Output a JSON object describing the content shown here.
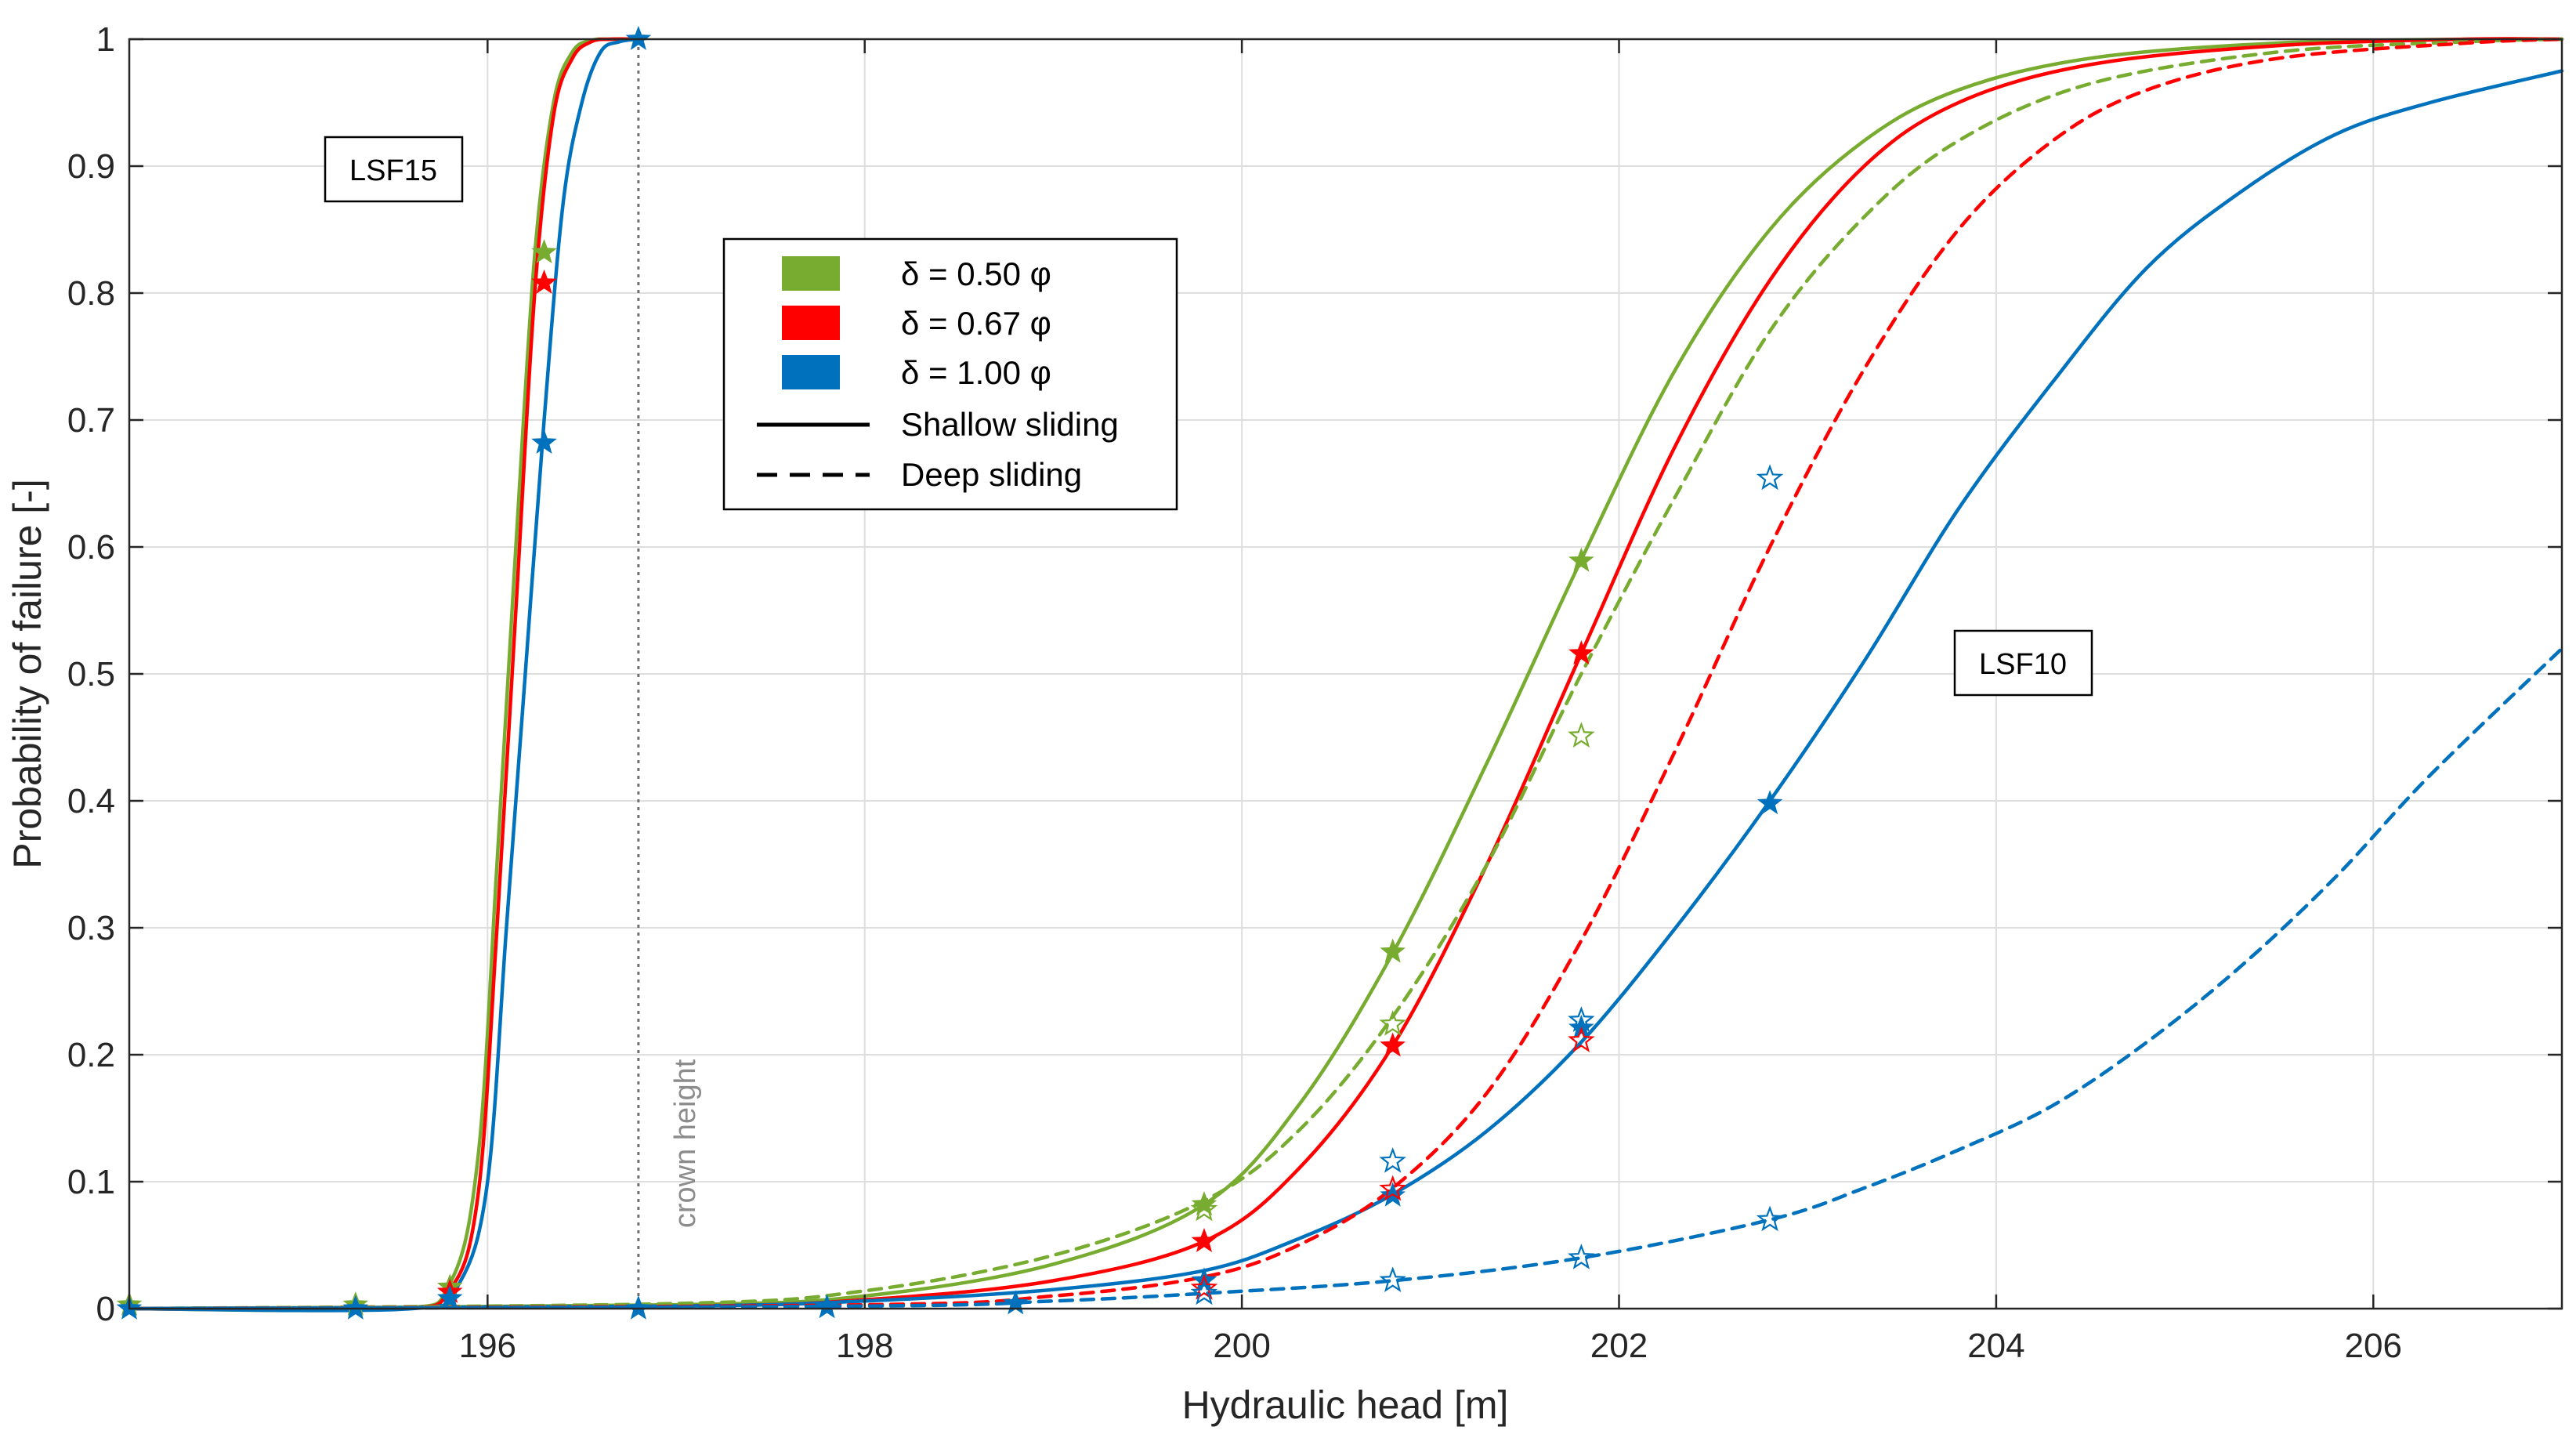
{
  "chart_data": {
    "type": "line",
    "xlabel": "Hydraulic head [m]",
    "ylabel": "Probability of failure [-]",
    "xlim": [
      194.1,
      207.0
    ],
    "ylim": [
      0,
      1
    ],
    "xticks": [
      196,
      198,
      200,
      202,
      204,
      206
    ],
    "xtick_labels": [
      "196",
      "198",
      "200",
      "202",
      "204",
      "206"
    ],
    "yticks": [
      0,
      0.1,
      0.2,
      0.3,
      0.4,
      0.5,
      0.6,
      0.7,
      0.8,
      0.9,
      1
    ],
    "ytick_labels": [
      "0",
      "0.1",
      "0.2",
      "0.3",
      "0.4",
      "0.5",
      "0.6",
      "0.7",
      "0.8",
      "0.9",
      "1"
    ],
    "grid": true,
    "colors": {
      "green": "#77ac30",
      "red": "#ff0000",
      "blue": "#0072bd"
    },
    "annotations": {
      "lsf15": "LSF15",
      "lsf10": "LSF10",
      "crown_label": "crown height",
      "crown_x": 196.8
    },
    "legend": {
      "placement": "upper-center",
      "entries": [
        {
          "label": "δ = 0.50 φ",
          "kind": "patch",
          "color": "#77ac30"
        },
        {
          "label": "δ = 0.67 φ",
          "kind": "patch",
          "color": "#ff0000"
        },
        {
          "label": "δ = 1.00 φ",
          "kind": "patch",
          "color": "#0072bd"
        },
        {
          "label": "Shallow sliding",
          "kind": "solid"
        },
        {
          "label": "Deep sliding",
          "kind": "dashed"
        }
      ]
    },
    "series": [
      {
        "name": "LSF15 δ = 0.50 φ",
        "group": "LSF15",
        "color": "#77ac30",
        "style": "solid",
        "x": [
          194.1,
          195.5,
          195.8,
          195.95,
          196.05,
          196.15,
          196.25,
          196.35,
          196.45,
          196.55,
          196.65,
          196.8
        ],
        "y": [
          0,
          0,
          0.02,
          0.12,
          0.35,
          0.6,
          0.83,
          0.95,
          0.99,
          0.999,
          1,
          1
        ],
        "markers": {
          "style": "filled",
          "x": [
            194.1,
            195.3,
            195.8,
            196.3
          ],
          "y": [
            0.003,
            0.003,
            0.017,
            0.832
          ]
        }
      },
      {
        "name": "LSF15 δ = 0.67 φ",
        "group": "LSF15",
        "color": "#ff0000",
        "style": "solid",
        "x": [
          194.1,
          195.5,
          195.8,
          195.95,
          196.05,
          196.15,
          196.25,
          196.35,
          196.45,
          196.55,
          196.65,
          196.8
        ],
        "y": [
          0,
          0,
          0.015,
          0.09,
          0.3,
          0.55,
          0.8,
          0.94,
          0.985,
          0.998,
          1,
          1
        ],
        "markers": {
          "style": "filled",
          "x": [
            195.8,
            196.3
          ],
          "y": [
            0.013,
            0.808
          ]
        }
      },
      {
        "name": "LSF15 δ = 1.00 φ",
        "group": "LSF15",
        "color": "#0072bd",
        "style": "solid",
        "x": [
          194.1,
          195.6,
          195.85,
          196.0,
          196.1,
          196.2,
          196.3,
          196.4,
          196.5,
          196.6,
          196.7,
          196.8
        ],
        "y": [
          0,
          0,
          0.02,
          0.1,
          0.3,
          0.5,
          0.7,
          0.87,
          0.95,
          0.99,
          0.998,
          1
        ],
        "markers": {
          "style": "filled",
          "x": [
            194.1,
            195.3,
            195.8,
            196.3,
            196.8
          ],
          "y": [
            0,
            0,
            0.008,
            0.682,
            1
          ]
        }
      },
      {
        "name": "LSF10 δ = 0.50 φ shallow",
        "group": "LSF10",
        "color": "#77ac30",
        "style": "solid",
        "x": [
          194.1,
          197.0,
          198.0,
          199.0,
          199.8,
          200.3,
          200.8,
          201.3,
          201.8,
          202.3,
          202.8,
          203.3,
          203.8,
          204.5,
          205.5,
          206.5,
          207.0
        ],
        "y": [
          0,
          0.003,
          0.01,
          0.035,
          0.082,
          0.16,
          0.28,
          0.43,
          0.59,
          0.74,
          0.85,
          0.92,
          0.96,
          0.985,
          0.997,
          1,
          1
        ],
        "markers": {
          "style": "filled",
          "x": [
            199.8,
            200.8,
            201.8
          ],
          "y": [
            0.082,
            0.281,
            0.589
          ]
        }
      },
      {
        "name": "LSF10 δ = 0.67 φ shallow",
        "group": "LSF10",
        "color": "#ff0000",
        "style": "solid",
        "x": [
          194.1,
          197.0,
          198.0,
          199.0,
          199.8,
          200.3,
          200.8,
          201.3,
          201.8,
          202.3,
          202.8,
          203.3,
          203.8,
          204.5,
          205.5,
          206.5,
          207.0
        ],
        "y": [
          0,
          0.002,
          0.007,
          0.022,
          0.053,
          0.11,
          0.207,
          0.35,
          0.516,
          0.68,
          0.81,
          0.9,
          0.95,
          0.98,
          0.995,
          1,
          1
        ],
        "markers": {
          "style": "filled",
          "x": [
            199.8,
            200.8,
            201.8
          ],
          "y": [
            0.053,
            0.207,
            0.516
          ]
        }
      },
      {
        "name": "LSF10 δ = 1.00 φ shallow",
        "group": "LSF10",
        "color": "#0072bd",
        "style": "solid",
        "x": [
          194.1,
          197.0,
          198.0,
          199.0,
          199.8,
          200.3,
          200.8,
          201.3,
          201.8,
          202.3,
          202.8,
          203.3,
          203.8,
          204.3,
          204.8,
          205.3,
          205.8,
          206.3,
          207.0
        ],
        "y": [
          0,
          0.002,
          0.006,
          0.015,
          0.03,
          0.055,
          0.09,
          0.14,
          0.21,
          0.3,
          0.4,
          0.51,
          0.63,
          0.73,
          0.82,
          0.88,
          0.925,
          0.95,
          0.975
        ],
        "markers": {
          "style": "filled",
          "x": [
            196.8,
            197.8,
            198.8,
            199.8,
            200.8,
            201.8,
            202.8
          ],
          "y": [
            0,
            0.001,
            0.004,
            0.022,
            0.089,
            0.221,
            0.398
          ]
        }
      },
      {
        "name": "LSF10 δ = 0.50 φ deep",
        "group": "LSF10",
        "color": "#77ac30",
        "style": "dashed",
        "x": [
          194.1,
          197.0,
          198.0,
          199.0,
          199.8,
          200.3,
          200.8,
          201.3,
          201.8,
          202.3,
          202.8,
          203.3,
          203.8,
          204.5,
          205.5,
          206.5,
          207.0
        ],
        "y": [
          0,
          0.004,
          0.014,
          0.042,
          0.085,
          0.14,
          0.23,
          0.35,
          0.5,
          0.64,
          0.77,
          0.86,
          0.92,
          0.965,
          0.99,
          0.998,
          1
        ],
        "markers": {
          "style": "open",
          "x": [
            199.8,
            200.8,
            201.8
          ],
          "y": [
            0.078,
            0.224,
            0.451
          ]
        }
      },
      {
        "name": "LSF10 δ = 0.67 φ deep",
        "group": "LSF10",
        "color": "#ff0000",
        "style": "dashed",
        "x": [
          194.1,
          198.0,
          199.0,
          199.8,
          200.3,
          200.8,
          201.3,
          201.8,
          202.3,
          202.8,
          203.3,
          203.8,
          204.3,
          204.8,
          205.5,
          206.5,
          207.0
        ],
        "y": [
          0,
          0.003,
          0.01,
          0.025,
          0.05,
          0.095,
          0.17,
          0.29,
          0.44,
          0.6,
          0.74,
          0.85,
          0.92,
          0.96,
          0.985,
          0.997,
          1
        ],
        "markers": {
          "style": "open",
          "x": [
            199.8,
            200.8,
            201.8
          ],
          "y": [
            0.016,
            0.094,
            0.211
          ]
        }
      },
      {
        "name": "LSF10 δ = 1.00 φ deep",
        "group": "LSF10",
        "color": "#0072bd",
        "style": "dashed",
        "x": [
          194.1,
          198.0,
          199.0,
          199.8,
          200.8,
          201.8,
          202.8,
          203.3,
          203.8,
          204.3,
          204.8,
          205.3,
          205.8,
          206.3,
          207.0
        ],
        "y": [
          0,
          0.002,
          0.006,
          0.012,
          0.022,
          0.04,
          0.07,
          0.095,
          0.125,
          0.16,
          0.21,
          0.27,
          0.34,
          0.42,
          0.52
        ],
        "markers": {
          "style": "open",
          "x": [
            199.8,
            200.8,
            201.8,
            202.8,
            200.8,
            201.8,
            202.8
          ],
          "y": [
            0.012,
            0.022,
            0.04,
            0.07,
            0.116,
            0.227,
            0.654
          ]
        }
      }
    ]
  }
}
